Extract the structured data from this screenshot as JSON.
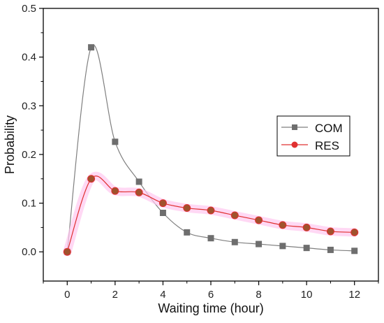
{
  "chart_data": {
    "type": "line",
    "xlabel": "Waiting time (hour)",
    "ylabel": "Probability",
    "xlim": [
      -1,
      13
    ],
    "ylim": [
      -0.06,
      0.5
    ],
    "xticks": [
      "0",
      "2",
      "4",
      "6",
      "8",
      "10",
      "12"
    ],
    "yticks": [
      "0.0",
      "0.1",
      "0.2",
      "0.3",
      "0.4",
      "0.5"
    ],
    "legend_position": "right",
    "series": [
      {
        "name": "COM",
        "marker": "square",
        "line_color": "#7f7f7f",
        "marker_color": "#6e6e6e",
        "x": [
          0,
          1,
          2,
          3,
          4,
          5,
          6,
          7,
          8,
          9,
          10,
          11,
          12
        ],
        "y": [
          0.0,
          0.42,
          0.226,
          0.144,
          0.08,
          0.04,
          0.028,
          0.02,
          0.016,
          0.012,
          0.008,
          0.004,
          0.002
        ]
      },
      {
        "name": "RES",
        "marker": "circle",
        "line_color": "#e03030",
        "marker_color": "#a0522d",
        "marker_edge": "#e03030",
        "highlight_color": "#ffc8f0",
        "x": [
          0,
          1,
          2,
          3,
          4,
          5,
          6,
          7,
          8,
          9,
          10,
          11,
          12
        ],
        "y": [
          0.0,
          0.15,
          0.125,
          0.122,
          0.1,
          0.09,
          0.085,
          0.075,
          0.065,
          0.055,
          0.05,
          0.042,
          0.04
        ]
      }
    ]
  }
}
